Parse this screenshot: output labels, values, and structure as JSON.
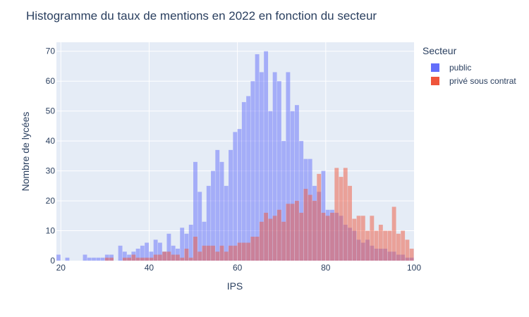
{
  "chart_data": {
    "type": "bar",
    "title": "Histogramme du taux de mentions en 2022 en fonction du secteur",
    "xlabel": "IPS",
    "ylabel": "Nombre de lycées",
    "xlim": [
      19,
      100
    ],
    "ylim": [
      0,
      73
    ],
    "xticks": [
      20,
      40,
      60,
      80,
      100
    ],
    "yticks": [
      0,
      10,
      20,
      30,
      40,
      50,
      60,
      70
    ],
    "grid": true,
    "barmode": "overlay",
    "bin_width": 1,
    "legend": {
      "title": "Secteur",
      "placement": "right"
    },
    "series": [
      {
        "name": "public",
        "color": "#636efa",
        "x": [
          19,
          21,
          25,
          26,
          27,
          28,
          29,
          30,
          31,
          33,
          34,
          35,
          36,
          37,
          38,
          39,
          40,
          41,
          42,
          43,
          44,
          45,
          46,
          47,
          48,
          49,
          50,
          51,
          52,
          53,
          54,
          55,
          56,
          57,
          58,
          59,
          60,
          61,
          62,
          63,
          64,
          65,
          66,
          67,
          68,
          69,
          70,
          71,
          72,
          73,
          74,
          75,
          76,
          77,
          78,
          79,
          80,
          81,
          82,
          83,
          84,
          85,
          86,
          87,
          88,
          89,
          90,
          91,
          92,
          93,
          94,
          95,
          96,
          97,
          98,
          99
        ],
        "values": [
          2,
          1,
          2,
          1,
          1,
          1,
          1,
          2,
          2,
          5,
          3,
          2,
          3,
          4,
          5,
          6,
          3,
          7,
          6,
          3,
          9,
          5,
          4,
          11,
          9,
          12,
          33,
          23,
          13,
          25,
          30,
          37,
          33,
          25,
          37,
          43,
          44,
          53,
          55,
          60,
          69,
          63,
          70,
          50,
          63,
          60,
          40,
          63,
          50,
          52,
          40,
          34,
          34,
          25,
          23,
          30,
          17,
          17,
          16,
          15,
          12,
          11,
          10,
          7,
          6,
          7,
          5,
          4,
          4,
          4,
          3,
          3,
          2,
          2,
          1,
          1
        ]
      },
      {
        "name": "privé sous contrat",
        "color": "#ef553b",
        "x": [
          30,
          31,
          34,
          35,
          36,
          37,
          38,
          39,
          40,
          41,
          42,
          43,
          44,
          45,
          46,
          47,
          48,
          49,
          50,
          51,
          52,
          53,
          54,
          55,
          56,
          57,
          58,
          59,
          60,
          61,
          62,
          63,
          64,
          65,
          66,
          67,
          68,
          69,
          70,
          71,
          72,
          73,
          74,
          75,
          76,
          77,
          78,
          79,
          80,
          81,
          82,
          83,
          84,
          85,
          86,
          87,
          88,
          89,
          90,
          91,
          92,
          93,
          94,
          95,
          96,
          97,
          98,
          99
        ],
        "values": [
          1,
          1,
          1,
          1,
          2,
          1,
          1,
          1,
          1,
          2,
          2,
          3,
          3,
          2,
          2,
          1,
          4,
          1,
          8,
          3,
          5,
          5,
          5,
          3,
          5,
          3,
          5,
          5,
          6,
          6,
          6,
          8,
          8,
          13,
          16,
          14,
          15,
          17,
          13,
          19,
          19,
          20,
          16,
          24,
          22,
          20,
          29,
          16,
          15,
          16,
          31,
          28,
          31,
          25,
          14,
          15,
          15,
          10,
          15,
          10,
          12,
          10,
          10,
          18,
          9,
          10,
          7,
          4
        ]
      }
    ]
  }
}
